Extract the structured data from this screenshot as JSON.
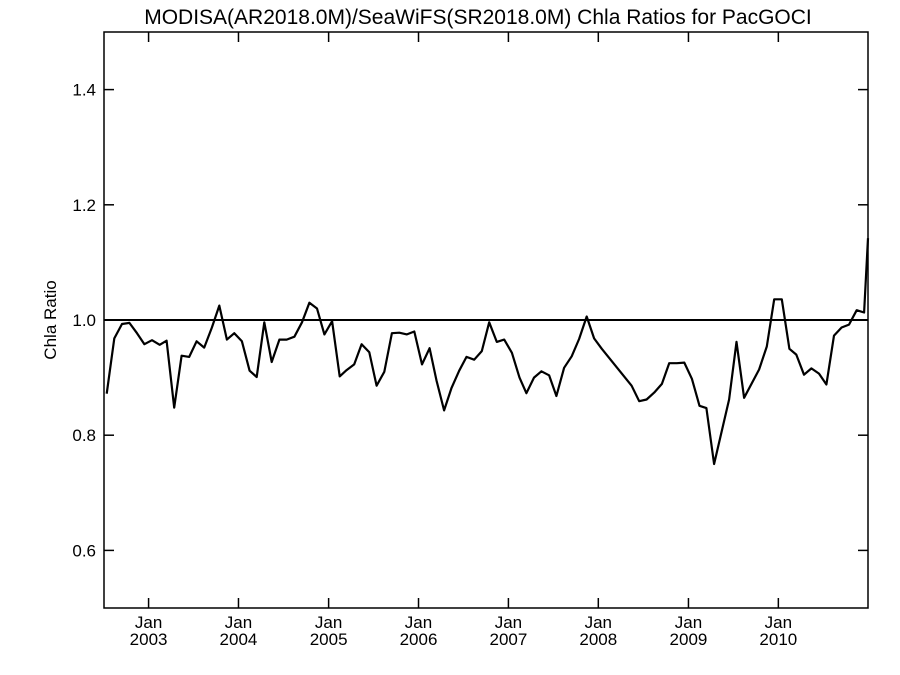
{
  "chart_data": {
    "type": "line",
    "title": "MODISA(AR2018.0M)/SeaWiFS(SR2018.0M)  Chla Ratios for PacGOCI",
    "xlabel": "",
    "ylabel": "Chla Ratio",
    "xlim": [
      "2002-07-04",
      "2010-12-31"
    ],
    "ylim": [
      0.5,
      1.5
    ],
    "yticks": [
      0.6,
      0.8,
      1.0,
      1.2,
      1.4
    ],
    "ytick_labels": [
      "0.6",
      "0.8",
      "1.0",
      "1.2",
      "1.4"
    ],
    "xticks": [
      {
        "date": "2003-01-01",
        "month": "Jan",
        "year": "2003"
      },
      {
        "date": "2004-01-01",
        "month": "Jan",
        "year": "2004"
      },
      {
        "date": "2005-01-01",
        "month": "Jan",
        "year": "2005"
      },
      {
        "date": "2006-01-01",
        "month": "Jan",
        "year": "2006"
      },
      {
        "date": "2007-01-01",
        "month": "Jan",
        "year": "2007"
      },
      {
        "date": "2008-01-01",
        "month": "Jan",
        "year": "2008"
      },
      {
        "date": "2009-01-01",
        "month": "Jan",
        "year": "2009"
      },
      {
        "date": "2010-01-01",
        "month": "Jan",
        "year": "2010"
      }
    ],
    "reference_line": {
      "y": 1.0
    },
    "grid": false,
    "series": [
      {
        "line_color": "#000000",
        "x": [
          "2002-07-15",
          "2002-08-15",
          "2002-09-15",
          "2002-10-15",
          "2002-11-15",
          "2002-12-15",
          "2003-01-15",
          "2003-02-15",
          "2003-03-15",
          "2003-04-15",
          "2003-05-15",
          "2003-06-15",
          "2003-07-15",
          "2003-08-15",
          "2003-09-15",
          "2003-10-15",
          "2003-11-15",
          "2003-12-15",
          "2004-01-15",
          "2004-02-15",
          "2004-03-15",
          "2004-04-15",
          "2004-05-15",
          "2004-06-15",
          "2004-07-15",
          "2004-08-15",
          "2004-09-15",
          "2004-10-15",
          "2004-11-15",
          "2004-12-15",
          "2005-01-15",
          "2005-02-15",
          "2005-03-15",
          "2005-04-15",
          "2005-05-15",
          "2005-06-15",
          "2005-07-15",
          "2005-08-15",
          "2005-09-15",
          "2005-10-15",
          "2005-11-15",
          "2005-12-15",
          "2006-01-15",
          "2006-02-15",
          "2006-03-15",
          "2006-04-15",
          "2006-05-15",
          "2006-06-15",
          "2006-07-15",
          "2006-08-15",
          "2006-09-15",
          "2006-10-15",
          "2006-11-15",
          "2006-12-15",
          "2007-01-15",
          "2007-02-15",
          "2007-03-15",
          "2007-04-15",
          "2007-05-15",
          "2007-06-15",
          "2007-07-15",
          "2007-08-15",
          "2007-09-15",
          "2007-10-15",
          "2007-11-15",
          "2007-12-15",
          "2008-01-15",
          "2008-05-15",
          "2008-06-15",
          "2008-07-15",
          "2008-08-15",
          "2008-09-15",
          "2008-10-15",
          "2008-11-15",
          "2008-12-15",
          "2009-01-15",
          "2009-02-15",
          "2009-03-15",
          "2009-04-15",
          "2009-06-15",
          "2009-07-15",
          "2009-08-15",
          "2009-10-15",
          "2009-11-15",
          "2009-12-15",
          "2010-01-15",
          "2010-02-15",
          "2010-03-15",
          "2010-04-15",
          "2010-05-15",
          "2010-06-15",
          "2010-07-15",
          "2010-08-15",
          "2010-09-15",
          "2010-10-15",
          "2010-11-15",
          "2010-12-15",
          "2010-12-31"
        ],
        "y": [
          0.872,
          0.968,
          0.993,
          0.995,
          0.977,
          0.958,
          0.965,
          0.957,
          0.964,
          0.848,
          0.938,
          0.936,
          0.963,
          0.952,
          0.987,
          1.025,
          0.966,
          0.977,
          0.963,
          0.912,
          0.901,
          0.996,
          0.927,
          0.966,
          0.966,
          0.971,
          0.996,
          1.03,
          1.02,
          0.975,
          0.998,
          0.902,
          0.913,
          0.923,
          0.958,
          0.944,
          0.886,
          0.91,
          0.977,
          0.978,
          0.975,
          0.98,
          0.923,
          0.951,
          0.895,
          0.843,
          0.882,
          0.912,
          0.936,
          0.931,
          0.946,
          0.996,
          0.962,
          0.966,
          0.943,
          0.9,
          0.873,
          0.9,
          0.911,
          0.904,
          0.868,
          0.917,
          0.937,
          0.967,
          1.006,
          0.968,
          0.95,
          0.886,
          0.859,
          0.862,
          0.874,
          0.889,
          0.925,
          0.925,
          0.926,
          0.898,
          0.851,
          0.847,
          0.75,
          0.862,
          0.962,
          0.865,
          0.914,
          0.954,
          1.036,
          1.036,
          0.95,
          0.94,
          0.905,
          0.916,
          0.907,
          0.888,
          0.973,
          0.987,
          0.992,
          1.017,
          1.013,
          1.142
        ]
      }
    ]
  }
}
